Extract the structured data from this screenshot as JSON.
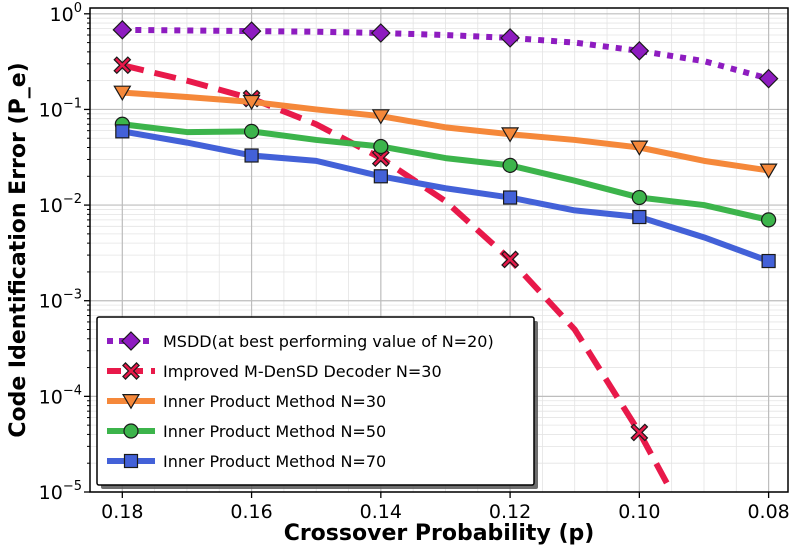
{
  "chart_data": {
    "type": "line",
    "xlabel": "Crossover Probability (p)",
    "ylabel": "Code Identification Error (P_e)",
    "x_ticks": [
      0.18,
      0.16,
      0.14,
      0.12,
      0.1,
      0.08
    ],
    "x_tick_labels": [
      "0.18",
      "0.16",
      "0.14",
      "0.12",
      "0.10",
      "0.08"
    ],
    "xlim": [
      0.185,
      0.077
    ],
    "x_reversed": true,
    "yscale": "log",
    "ylim": [
      1e-05,
      1.15
    ],
    "y_ticks": [
      {
        "value": 1,
        "mantissa": "10",
        "exp": "0"
      },
      {
        "value": 0.1,
        "mantissa": "10",
        "exp": "−1"
      },
      {
        "value": 0.01,
        "mantissa": "10",
        "exp": "−2"
      },
      {
        "value": 0.001,
        "mantissa": "10",
        "exp": "−3"
      },
      {
        "value": 0.0001,
        "mantissa": "10",
        "exp": "−4"
      },
      {
        "value": 1e-05,
        "mantissa": "10",
        "exp": "−5"
      }
    ],
    "grid": true,
    "legend_position": "lower-left",
    "series": [
      {
        "name": "MSDD(at best performing value of N=20)",
        "color": "#8e1cc0",
        "marker": "diamond",
        "line_style": "dotted",
        "x": [
          0.18,
          0.17,
          0.16,
          0.15,
          0.14,
          0.13,
          0.12,
          0.11,
          0.1,
          0.09,
          0.08
        ],
        "y": [
          0.68,
          0.67,
          0.66,
          0.65,
          0.63,
          0.6,
          0.56,
          0.5,
          0.41,
          0.32,
          0.21
        ],
        "marker_x": [
          0.18,
          0.16,
          0.14,
          0.12,
          0.1,
          0.08
        ],
        "marker_y": [
          0.68,
          0.66,
          0.63,
          0.56,
          0.41,
          0.21
        ]
      },
      {
        "name": "Improved M-DenSD Decoder N=30",
        "color": "#e8194a",
        "marker": "x",
        "line_style": "dashed",
        "x": [
          0.18,
          0.17,
          0.16,
          0.15,
          0.14,
          0.13,
          0.12,
          0.11,
          0.1,
          0.095
        ],
        "y": [
          0.29,
          0.2,
          0.13,
          0.07,
          0.031,
          0.011,
          0.0027,
          0.0005,
          4.2e-05,
          1e-05
        ],
        "marker_x": [
          0.18,
          0.16,
          0.14,
          0.12,
          0.1
        ],
        "marker_y": [
          0.29,
          0.13,
          0.031,
          0.0027,
          4.2e-05
        ]
      },
      {
        "name": "Inner Product Method N=30",
        "color": "#f5883a",
        "marker": "triangle-down",
        "line_style": "solid",
        "x": [
          0.18,
          0.17,
          0.16,
          0.15,
          0.14,
          0.13,
          0.12,
          0.11,
          0.1,
          0.09,
          0.08
        ],
        "y": [
          0.15,
          0.135,
          0.12,
          0.1,
          0.085,
          0.065,
          0.055,
          0.048,
          0.04,
          0.029,
          0.023
        ],
        "marker_x": [
          0.18,
          0.16,
          0.14,
          0.12,
          0.1,
          0.08
        ],
        "marker_y": [
          0.15,
          0.12,
          0.085,
          0.055,
          0.04,
          0.023
        ]
      },
      {
        "name": "Inner Product Method N=50",
        "color": "#3cb44b",
        "marker": "circle",
        "line_style": "solid",
        "x": [
          0.18,
          0.17,
          0.16,
          0.15,
          0.14,
          0.13,
          0.12,
          0.11,
          0.1,
          0.09,
          0.08
        ],
        "y": [
          0.07,
          0.058,
          0.059,
          0.048,
          0.041,
          0.031,
          0.026,
          0.018,
          0.012,
          0.01,
          0.007
        ],
        "marker_x": [
          0.18,
          0.16,
          0.14,
          0.12,
          0.1,
          0.08
        ],
        "marker_y": [
          0.07,
          0.059,
          0.041,
          0.026,
          0.012,
          0.007
        ]
      },
      {
        "name": "Inner Product Method N=70",
        "color": "#4361d8",
        "marker": "square",
        "line_style": "solid",
        "x": [
          0.18,
          0.17,
          0.16,
          0.15,
          0.14,
          0.13,
          0.12,
          0.11,
          0.1,
          0.09,
          0.08
        ],
        "y": [
          0.059,
          0.045,
          0.033,
          0.029,
          0.02,
          0.015,
          0.012,
          0.0088,
          0.0075,
          0.0046,
          0.0026
        ],
        "marker_x": [
          0.18,
          0.16,
          0.14,
          0.12,
          0.1,
          0.08
        ],
        "marker_y": [
          0.059,
          0.033,
          0.02,
          0.012,
          0.0075,
          0.0026
        ]
      }
    ]
  }
}
